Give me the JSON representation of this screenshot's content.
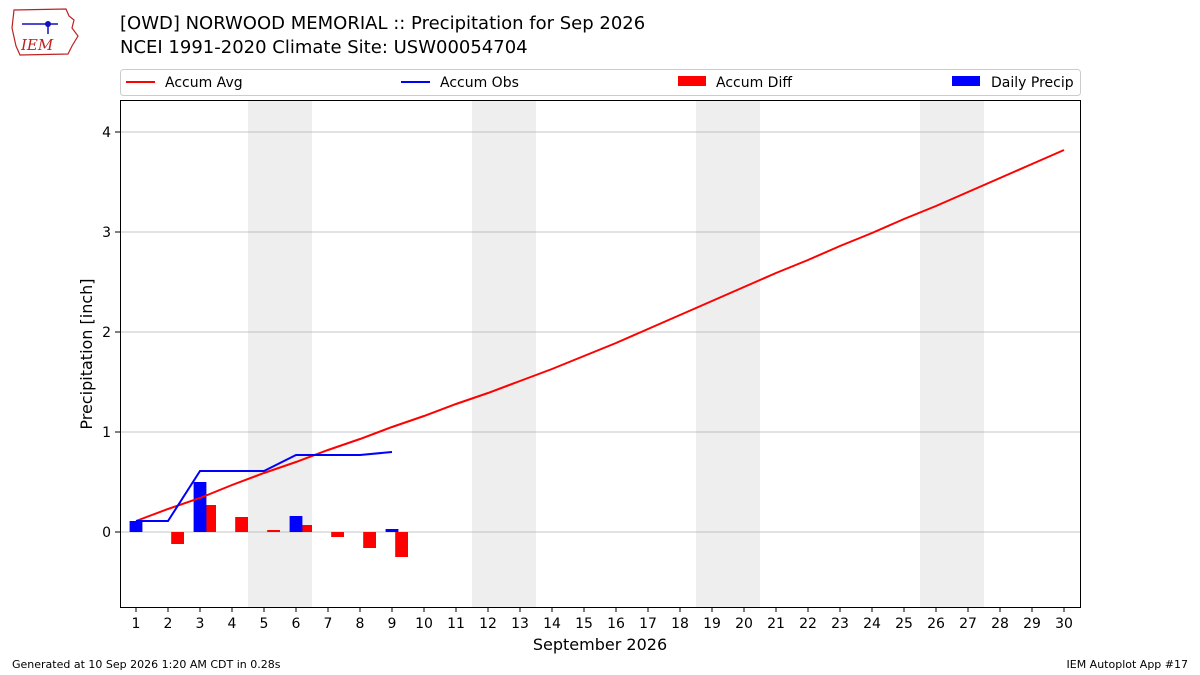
{
  "header": {
    "title": "[OWD] NORWOOD MEMORIAL :: Precipitation for Sep 2026",
    "subtitle": "NCEI 1991-2020 Climate Site: USW00054704",
    "logo_text": "IEM"
  },
  "footer": {
    "left": "Generated at 10 Sep 2026 1:20 AM CDT in 0.28s",
    "right": "IEM Autoplot App #17"
  },
  "colors": {
    "accum_avg": "#ff0000",
    "accum_obs": "#0000ff",
    "accum_diff": "#ff0000",
    "daily_precip": "#0000ff",
    "weekend_band": "#eeeeee",
    "grid": "#b0b0b0"
  },
  "chart_data": {
    "type": "line",
    "xlabel": "September 2026",
    "ylabel": "Precipitation [inch]",
    "xlim": [
      0.5,
      30.5
    ],
    "ylim": [
      -0.75,
      4.32
    ],
    "x_ticks": [
      1,
      2,
      3,
      4,
      5,
      6,
      7,
      8,
      9,
      10,
      11,
      12,
      13,
      14,
      15,
      16,
      17,
      18,
      19,
      20,
      21,
      22,
      23,
      24,
      25,
      26,
      27,
      28,
      29,
      30
    ],
    "y_ticks": [
      0,
      1,
      2,
      3,
      4
    ],
    "grid": "y",
    "legend_position": "top",
    "legend": [
      "Accum Avg",
      "Accum Obs",
      "Accum Diff",
      "Daily Precip"
    ],
    "weekend_shading": [
      [
        5,
        6
      ],
      [
        12,
        13
      ],
      [
        19,
        20
      ],
      [
        26,
        27
      ]
    ],
    "series": [
      {
        "name": "Accum Avg",
        "kind": "line",
        "x": [
          1,
          2,
          3,
          4,
          5,
          6,
          7,
          8,
          9,
          10,
          11,
          12,
          13,
          14,
          15,
          16,
          17,
          18,
          19,
          20,
          21,
          22,
          23,
          24,
          25,
          26,
          27,
          28,
          29,
          30
        ],
        "values": [
          0.11,
          0.23,
          0.34,
          0.47,
          0.59,
          0.7,
          0.82,
          0.93,
          1.05,
          1.16,
          1.28,
          1.39,
          1.51,
          1.63,
          1.76,
          1.89,
          2.03,
          2.17,
          2.31,
          2.45,
          2.59,
          2.72,
          2.86,
          2.99,
          3.13,
          3.26,
          3.4,
          3.54,
          3.68,
          3.82
        ]
      },
      {
        "name": "Accum Obs",
        "kind": "line",
        "x": [
          1,
          2,
          3,
          4,
          5,
          6,
          7,
          8,
          9
        ],
        "values": [
          0.11,
          0.11,
          0.61,
          0.61,
          0.61,
          0.77,
          0.77,
          0.77,
          0.8
        ]
      },
      {
        "name": "Accum Diff",
        "kind": "bar",
        "x": [
          1,
          2,
          3,
          4,
          5,
          6,
          7,
          8,
          9
        ],
        "values": [
          0.0,
          -0.12,
          0.27,
          0.15,
          0.02,
          0.07,
          -0.05,
          -0.16,
          -0.25
        ]
      },
      {
        "name": "Daily Precip",
        "kind": "bar",
        "x": [
          1,
          2,
          3,
          4,
          5,
          6,
          7,
          8,
          9
        ],
        "values": [
          0.11,
          0.0,
          0.5,
          0.0,
          0.0,
          0.16,
          0.0,
          0.0,
          0.03
        ]
      }
    ]
  }
}
